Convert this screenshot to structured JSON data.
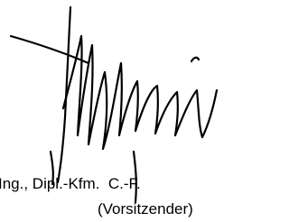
{
  "signature_block": {
    "name_line": "Ing., Dipl.-Kfm.  C.-F.",
    "role_line": "(Vorsitzender)"
  }
}
